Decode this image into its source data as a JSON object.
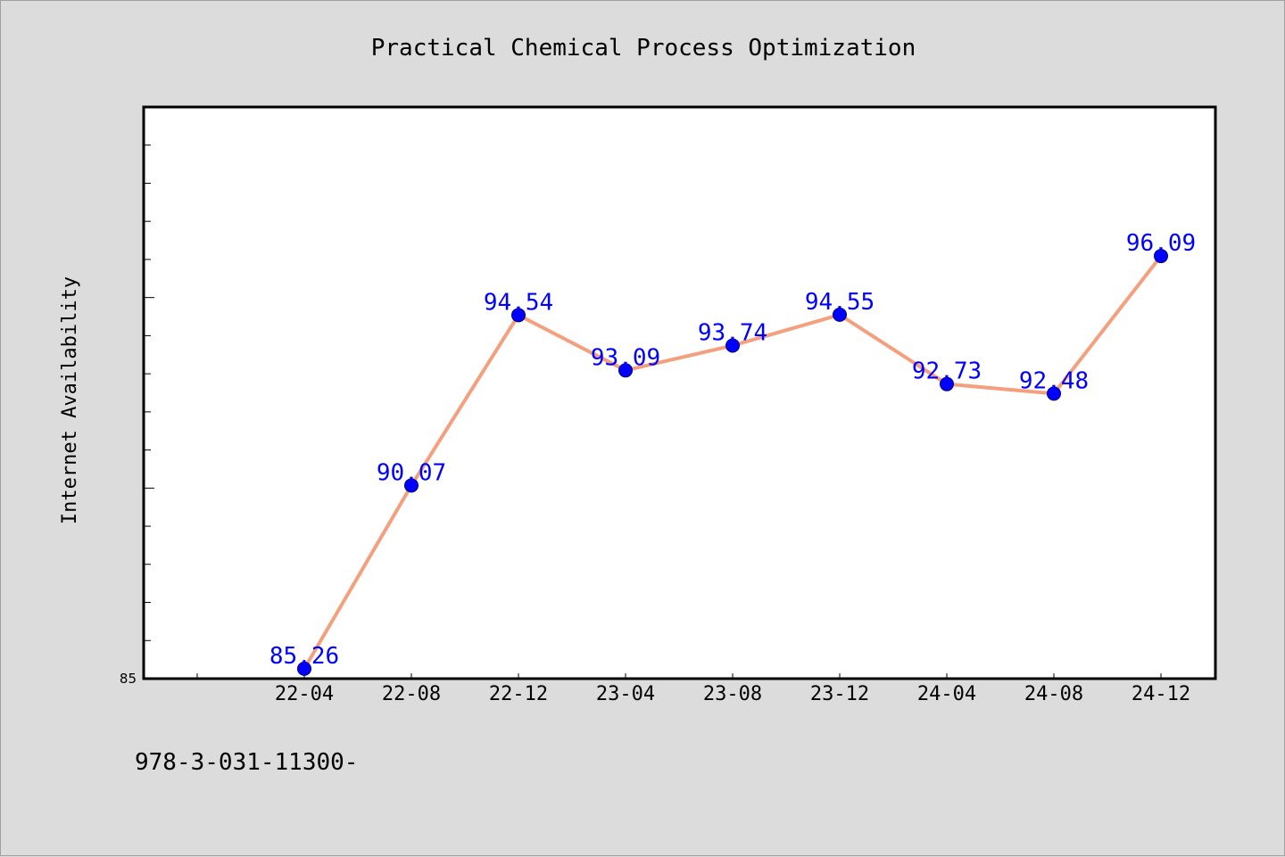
{
  "chart_data": {
    "type": "line",
    "title": "Practical Chemical Process Optimization",
    "xlabel": "",
    "ylabel": "Internet Availability",
    "categories": [
      "22-04",
      "22-08",
      "22-12",
      "23-04",
      "23-08",
      "23-12",
      "24-04",
      "24-08",
      "24-12"
    ],
    "series": [
      {
        "values": [
          85.26,
          90.07,
          94.54,
          93.09,
          93.74,
          94.55,
          92.73,
          92.48,
          96.09
        ]
      }
    ],
    "ylim": [
      85,
      100
    ],
    "yticks_labeled": [
      85
    ],
    "data_labels": [
      "85.26",
      "90.07",
      "94.54",
      "93.09",
      "93.74",
      "94.55",
      "92.73",
      "92.48",
      "96.09"
    ],
    "grid": false,
    "legend": "none"
  },
  "footer": {
    "text": "978-3-031-11300-"
  },
  "colors": {
    "line": "#f4a07e",
    "marker": "#0000ff",
    "label": "#0000ff",
    "background": "#dcdcdc",
    "plot_background": "#ffffff"
  }
}
